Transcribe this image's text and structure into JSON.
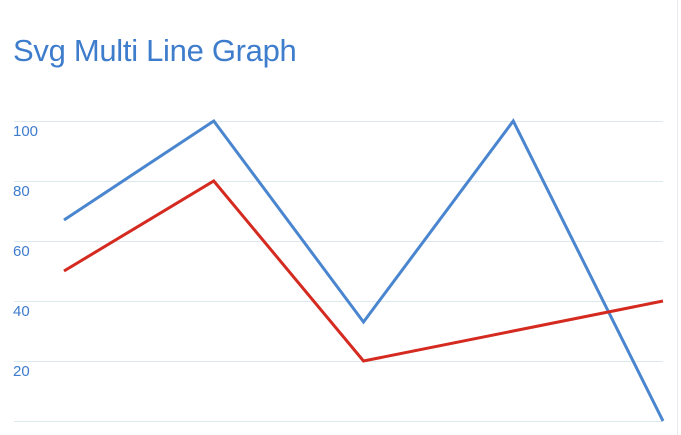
{
  "colors": {
    "title": "#3e7ccc",
    "tick_label": "#3e7ccc",
    "grid": "#dbe9ee"
  },
  "chart_data": {
    "type": "line",
    "title": "Svg Multi Line Graph",
    "xlabel": "",
    "ylabel": "",
    "ylim": [
      0,
      100
    ],
    "y_ticks": [
      20,
      40,
      60,
      80,
      100
    ],
    "grid": true,
    "legend": "none",
    "x": [
      0,
      1,
      2,
      3,
      4
    ],
    "series": [
      {
        "color": "#4a86cf",
        "values": [
          67,
          100,
          33,
          100,
          0
        ]
      },
      {
        "color": "#d42a20",
        "values": [
          50,
          80,
          20,
          30,
          40
        ]
      }
    ]
  }
}
